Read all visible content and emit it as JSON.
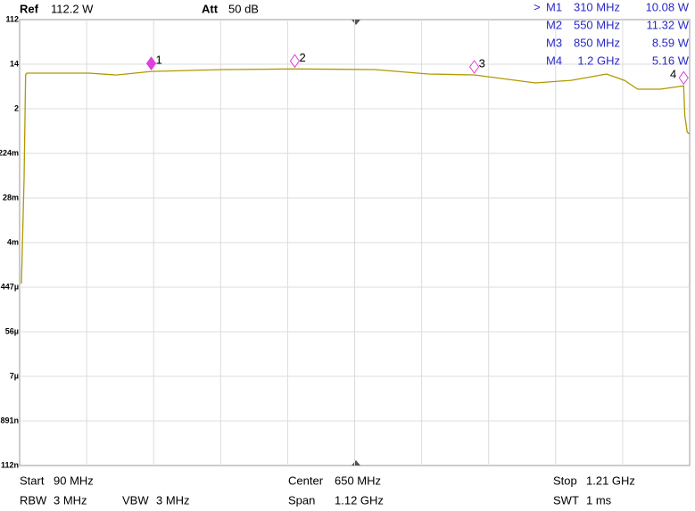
{
  "chart_data": {
    "type": "line",
    "log_y": true,
    "grid": true,
    "ref_label": "Ref",
    "ref_value": "112.2 W",
    "att_label": "Att",
    "att_value": "50 dB",
    "xlim": [
      90,
      1210
    ],
    "ylim": [
      1.122e-07,
      112.2
    ],
    "yticks": [
      {
        "value": 112.2,
        "label": "112"
      },
      {
        "value": 14.12,
        "label": "14"
      },
      {
        "value": 1.778,
        "label": "2"
      },
      {
        "value": 0.2239,
        "label": "224m"
      },
      {
        "value": 0.02818,
        "label": "28m"
      },
      {
        "value": 0.003548,
        "label": "4m"
      },
      {
        "value": 0.0004467,
        "label": "447µ"
      },
      {
        "value": 5.623e-05,
        "label": "56µ"
      },
      {
        "value": 7.079e-06,
        "label": "7µ"
      },
      {
        "value": 8.913e-07,
        "label": "891n"
      },
      {
        "value": 1.122e-07,
        "label": "112n"
      }
    ],
    "series": [
      {
        "color": "#b09800",
        "x": [
          93,
          97.5,
          100,
          102,
          206,
          251,
          310,
          430,
          550,
          684,
          773,
          850,
          952,
          1012,
          1071,
          1101,
          1123,
          1161,
          1200,
          1202,
          1206,
          1210
        ],
        "values": [
          0.000526,
          0.07,
          8.57,
          9.32,
          9.32,
          8.57,
          10.08,
          11,
          11.32,
          11,
          8.94,
          8.59,
          5.91,
          6.68,
          8.94,
          6.68,
          4.42,
          4.42,
          5.16,
          1.27,
          0.6,
          0.555
        ]
      }
    ],
    "markers": {
      "active": ">",
      "color": "#e040e0",
      "names": [
        "M1",
        "M2",
        "M3",
        "M4"
      ],
      "x": [
        310,
        550,
        850,
        1200
      ],
      "x_labels": [
        "310 MHz",
        "550 MHz",
        "850 MHz",
        "1.2 GHz"
      ],
      "values": [
        10.08,
        11.32,
        8.59,
        5.16
      ],
      "value_labels": [
        "10.08 W",
        "11.32 W",
        "8.59 W",
        "5.16 W"
      ],
      "labels": [
        "1",
        "2",
        "3",
        "4"
      ]
    },
    "footer": [
      [
        "Start",
        "90 MHz"
      ],
      [
        "Center",
        "650 MHz"
      ],
      [
        "Stop",
        "1.21 GHz"
      ],
      [
        "RBW",
        "3 MHz"
      ],
      [
        "VBW",
        "3 MHz"
      ],
      [
        "Span",
        "1.12 GHz"
      ],
      [
        "SWT",
        "1 ms"
      ]
    ]
  }
}
